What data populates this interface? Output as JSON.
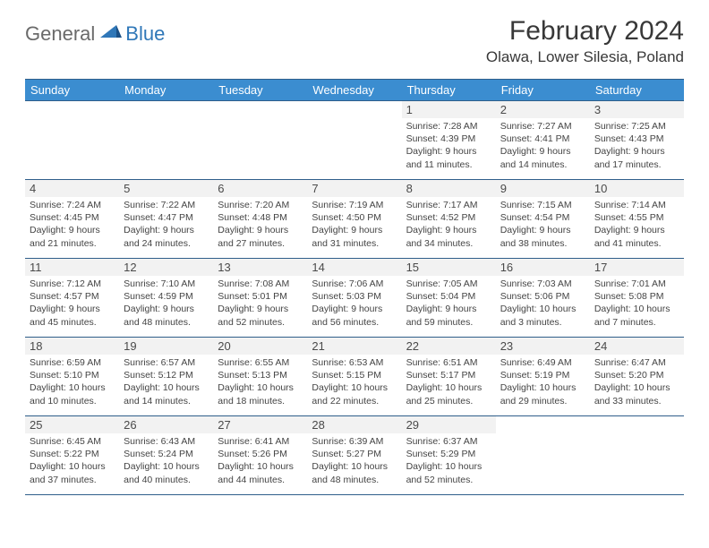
{
  "brand": {
    "general": "General",
    "blue": "Blue"
  },
  "title": "February 2024",
  "location": "Olawa, Lower Silesia, Poland",
  "colors": {
    "header_bg": "#3b8dd0",
    "header_text": "#ffffff",
    "rule": "#2f5e8a",
    "daynum_bg": "#f2f2f2",
    "body_text": "#444444",
    "logo_gray": "#6a6a6a",
    "logo_blue": "#2f77b8"
  },
  "weekdays": [
    "Sunday",
    "Monday",
    "Tuesday",
    "Wednesday",
    "Thursday",
    "Friday",
    "Saturday"
  ],
  "weeks": [
    [
      null,
      null,
      null,
      null,
      {
        "n": "1",
        "sr": "Sunrise: 7:28 AM",
        "ss": "Sunset: 4:39 PM",
        "d1": "Daylight: 9 hours",
        "d2": "and 11 minutes."
      },
      {
        "n": "2",
        "sr": "Sunrise: 7:27 AM",
        "ss": "Sunset: 4:41 PM",
        "d1": "Daylight: 9 hours",
        "d2": "and 14 minutes."
      },
      {
        "n": "3",
        "sr": "Sunrise: 7:25 AM",
        "ss": "Sunset: 4:43 PM",
        "d1": "Daylight: 9 hours",
        "d2": "and 17 minutes."
      }
    ],
    [
      {
        "n": "4",
        "sr": "Sunrise: 7:24 AM",
        "ss": "Sunset: 4:45 PM",
        "d1": "Daylight: 9 hours",
        "d2": "and 21 minutes."
      },
      {
        "n": "5",
        "sr": "Sunrise: 7:22 AM",
        "ss": "Sunset: 4:47 PM",
        "d1": "Daylight: 9 hours",
        "d2": "and 24 minutes."
      },
      {
        "n": "6",
        "sr": "Sunrise: 7:20 AM",
        "ss": "Sunset: 4:48 PM",
        "d1": "Daylight: 9 hours",
        "d2": "and 27 minutes."
      },
      {
        "n": "7",
        "sr": "Sunrise: 7:19 AM",
        "ss": "Sunset: 4:50 PM",
        "d1": "Daylight: 9 hours",
        "d2": "and 31 minutes."
      },
      {
        "n": "8",
        "sr": "Sunrise: 7:17 AM",
        "ss": "Sunset: 4:52 PM",
        "d1": "Daylight: 9 hours",
        "d2": "and 34 minutes."
      },
      {
        "n": "9",
        "sr": "Sunrise: 7:15 AM",
        "ss": "Sunset: 4:54 PM",
        "d1": "Daylight: 9 hours",
        "d2": "and 38 minutes."
      },
      {
        "n": "10",
        "sr": "Sunrise: 7:14 AM",
        "ss": "Sunset: 4:55 PM",
        "d1": "Daylight: 9 hours",
        "d2": "and 41 minutes."
      }
    ],
    [
      {
        "n": "11",
        "sr": "Sunrise: 7:12 AM",
        "ss": "Sunset: 4:57 PM",
        "d1": "Daylight: 9 hours",
        "d2": "and 45 minutes."
      },
      {
        "n": "12",
        "sr": "Sunrise: 7:10 AM",
        "ss": "Sunset: 4:59 PM",
        "d1": "Daylight: 9 hours",
        "d2": "and 48 minutes."
      },
      {
        "n": "13",
        "sr": "Sunrise: 7:08 AM",
        "ss": "Sunset: 5:01 PM",
        "d1": "Daylight: 9 hours",
        "d2": "and 52 minutes."
      },
      {
        "n": "14",
        "sr": "Sunrise: 7:06 AM",
        "ss": "Sunset: 5:03 PM",
        "d1": "Daylight: 9 hours",
        "d2": "and 56 minutes."
      },
      {
        "n": "15",
        "sr": "Sunrise: 7:05 AM",
        "ss": "Sunset: 5:04 PM",
        "d1": "Daylight: 9 hours",
        "d2": "and 59 minutes."
      },
      {
        "n": "16",
        "sr": "Sunrise: 7:03 AM",
        "ss": "Sunset: 5:06 PM",
        "d1": "Daylight: 10 hours",
        "d2": "and 3 minutes."
      },
      {
        "n": "17",
        "sr": "Sunrise: 7:01 AM",
        "ss": "Sunset: 5:08 PM",
        "d1": "Daylight: 10 hours",
        "d2": "and 7 minutes."
      }
    ],
    [
      {
        "n": "18",
        "sr": "Sunrise: 6:59 AM",
        "ss": "Sunset: 5:10 PM",
        "d1": "Daylight: 10 hours",
        "d2": "and 10 minutes."
      },
      {
        "n": "19",
        "sr": "Sunrise: 6:57 AM",
        "ss": "Sunset: 5:12 PM",
        "d1": "Daylight: 10 hours",
        "d2": "and 14 minutes."
      },
      {
        "n": "20",
        "sr": "Sunrise: 6:55 AM",
        "ss": "Sunset: 5:13 PM",
        "d1": "Daylight: 10 hours",
        "d2": "and 18 minutes."
      },
      {
        "n": "21",
        "sr": "Sunrise: 6:53 AM",
        "ss": "Sunset: 5:15 PM",
        "d1": "Daylight: 10 hours",
        "d2": "and 22 minutes."
      },
      {
        "n": "22",
        "sr": "Sunrise: 6:51 AM",
        "ss": "Sunset: 5:17 PM",
        "d1": "Daylight: 10 hours",
        "d2": "and 25 minutes."
      },
      {
        "n": "23",
        "sr": "Sunrise: 6:49 AM",
        "ss": "Sunset: 5:19 PM",
        "d1": "Daylight: 10 hours",
        "d2": "and 29 minutes."
      },
      {
        "n": "24",
        "sr": "Sunrise: 6:47 AM",
        "ss": "Sunset: 5:20 PM",
        "d1": "Daylight: 10 hours",
        "d2": "and 33 minutes."
      }
    ],
    [
      {
        "n": "25",
        "sr": "Sunrise: 6:45 AM",
        "ss": "Sunset: 5:22 PM",
        "d1": "Daylight: 10 hours",
        "d2": "and 37 minutes."
      },
      {
        "n": "26",
        "sr": "Sunrise: 6:43 AM",
        "ss": "Sunset: 5:24 PM",
        "d1": "Daylight: 10 hours",
        "d2": "and 40 minutes."
      },
      {
        "n": "27",
        "sr": "Sunrise: 6:41 AM",
        "ss": "Sunset: 5:26 PM",
        "d1": "Daylight: 10 hours",
        "d2": "and 44 minutes."
      },
      {
        "n": "28",
        "sr": "Sunrise: 6:39 AM",
        "ss": "Sunset: 5:27 PM",
        "d1": "Daylight: 10 hours",
        "d2": "and 48 minutes."
      },
      {
        "n": "29",
        "sr": "Sunrise: 6:37 AM",
        "ss": "Sunset: 5:29 PM",
        "d1": "Daylight: 10 hours",
        "d2": "and 52 minutes."
      },
      null,
      null
    ]
  ]
}
